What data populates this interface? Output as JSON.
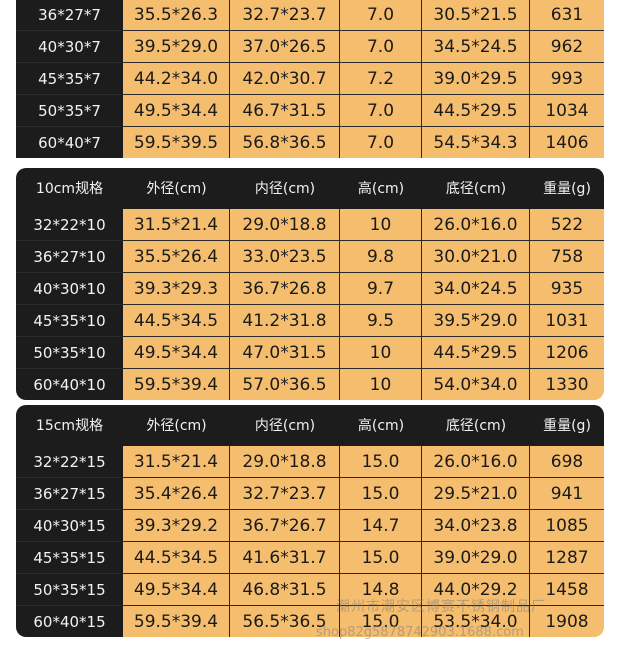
{
  "tables": [
    {
      "header": null,
      "rows": [
        [
          "36*27*7",
          "35.5*26.3",
          "32.7*23.7",
          "7.0",
          "30.5*21.5",
          "631"
        ],
        [
          "40*30*7",
          "39.5*29.0",
          "37.0*26.5",
          "7.0",
          "34.5*24.5",
          "962"
        ],
        [
          "45*35*7",
          "44.2*34.0",
          "42.0*30.7",
          "7.2",
          "39.0*29.5",
          "993"
        ],
        [
          "50*35*7",
          "49.5*34.4",
          "46.7*31.5",
          "7.0",
          "44.5*29.5",
          "1034"
        ],
        [
          "60*40*7",
          "59.5*39.5",
          "56.8*36.5",
          "7.0",
          "54.5*34.3",
          "1406"
        ]
      ]
    },
    {
      "header": [
        "10cm规格",
        "外径(cm)",
        "内径(cm)",
        "高(cm)",
        "底径(cm)",
        "重量(g)"
      ],
      "rows": [
        [
          "32*22*10",
          "31.5*21.4",
          "29.0*18.8",
          "10",
          "26.0*16.0",
          "522"
        ],
        [
          "36*27*10",
          "35.5*26.4",
          "33.0*23.5",
          "9.8",
          "30.0*21.0",
          "758"
        ],
        [
          "40*30*10",
          "39.3*29.3",
          "36.7*26.8",
          "9.7",
          "34.0*24.5",
          "935"
        ],
        [
          "45*35*10",
          "44.5*34.5",
          "41.2*31.8",
          "9.5",
          "39.5*29.0",
          "1031"
        ],
        [
          "50*35*10",
          "49.5*34.4",
          "47.0*31.5",
          "10",
          "44.5*29.5",
          "1206"
        ],
        [
          "60*40*10",
          "59.5*39.4",
          "57.0*36.5",
          "10",
          "54.0*34.0",
          "1330"
        ]
      ]
    },
    {
      "header": [
        "15cm规格",
        "外径(cm)",
        "内径(cm)",
        "高(cm)",
        "底径(cm)",
        "重量(g)"
      ],
      "rows": [
        [
          "32*22*15",
          "31.5*21.4",
          "29.0*18.8",
          "15.0",
          "26.0*16.0",
          "698"
        ],
        [
          "36*27*15",
          "35.4*26.4",
          "32.7*23.7",
          "15.0",
          "29.5*21.0",
          "941"
        ],
        [
          "40*30*15",
          "39.3*29.2",
          "36.7*26.7",
          "14.7",
          "34.0*23.8",
          "1085"
        ],
        [
          "45*35*15",
          "44.5*34.5",
          "41.6*31.7",
          "15.0",
          "39.0*29.0",
          "1287"
        ],
        [
          "50*35*15",
          "49.5*34.4",
          "46.8*31.5",
          "14.8",
          "44.0*29.2",
          "1458"
        ],
        [
          "60*40*15",
          "59.5*39.4",
          "56.5*36.5",
          "15.0",
          "53.5*34.0",
          "1908"
        ]
      ]
    }
  ],
  "watermark": {
    "line1": "潮州市潮安区博赛不锈钢制品厂",
    "line2": "shop82g5878742903.1688.com"
  },
  "colors": {
    "label_bg": "#1c1c1c",
    "value_bg": "#f5bd6e",
    "label_text": "#f2f2f2"
  }
}
